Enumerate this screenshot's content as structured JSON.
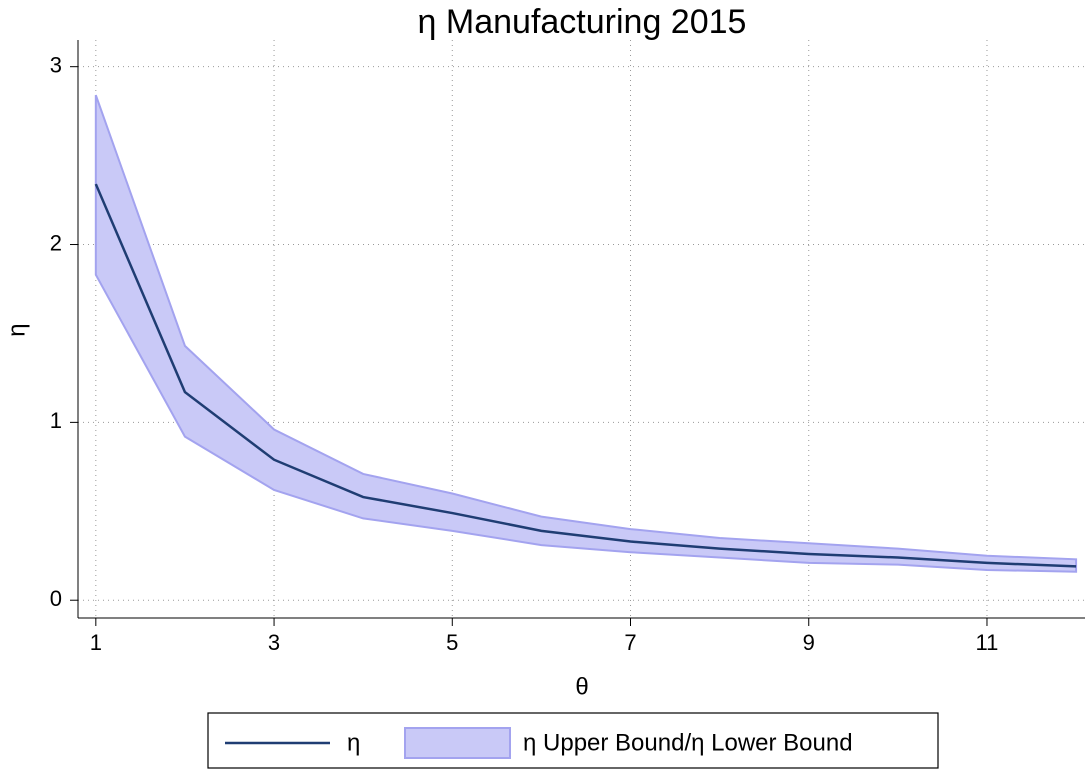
{
  "chart_data": {
    "type": "line-band",
    "title": "η Manufacturing 2015",
    "x_label": "θ",
    "y_label": "η",
    "x": [
      1,
      2,
      3,
      4,
      5,
      6,
      7,
      8,
      9,
      10,
      11,
      12
    ],
    "series": [
      {
        "name": "η",
        "color": "#1f3d73",
        "values": [
          2.34,
          1.17,
          0.79,
          0.58,
          0.49,
          0.39,
          0.33,
          0.29,
          0.26,
          0.24,
          0.21,
          0.19
        ]
      },
      {
        "name": "η Upper Bound/η Lower Bound",
        "color": "#c9c9f7",
        "upper": [
          2.84,
          1.43,
          0.96,
          0.71,
          0.6,
          0.47,
          0.4,
          0.35,
          0.32,
          0.29,
          0.25,
          0.23
        ],
        "lower": [
          1.83,
          0.92,
          0.62,
          0.46,
          0.39,
          0.31,
          0.27,
          0.24,
          0.21,
          0.2,
          0.17,
          0.16
        ]
      }
    ],
    "xlim": [
      0.8,
      12.1
    ],
    "ylim": [
      -0.1,
      3.15
    ],
    "xticks": [
      1,
      3,
      5,
      7,
      9,
      11
    ],
    "yticks": [
      0,
      1,
      2,
      3
    ],
    "grid": true,
    "legend": "bottom"
  }
}
